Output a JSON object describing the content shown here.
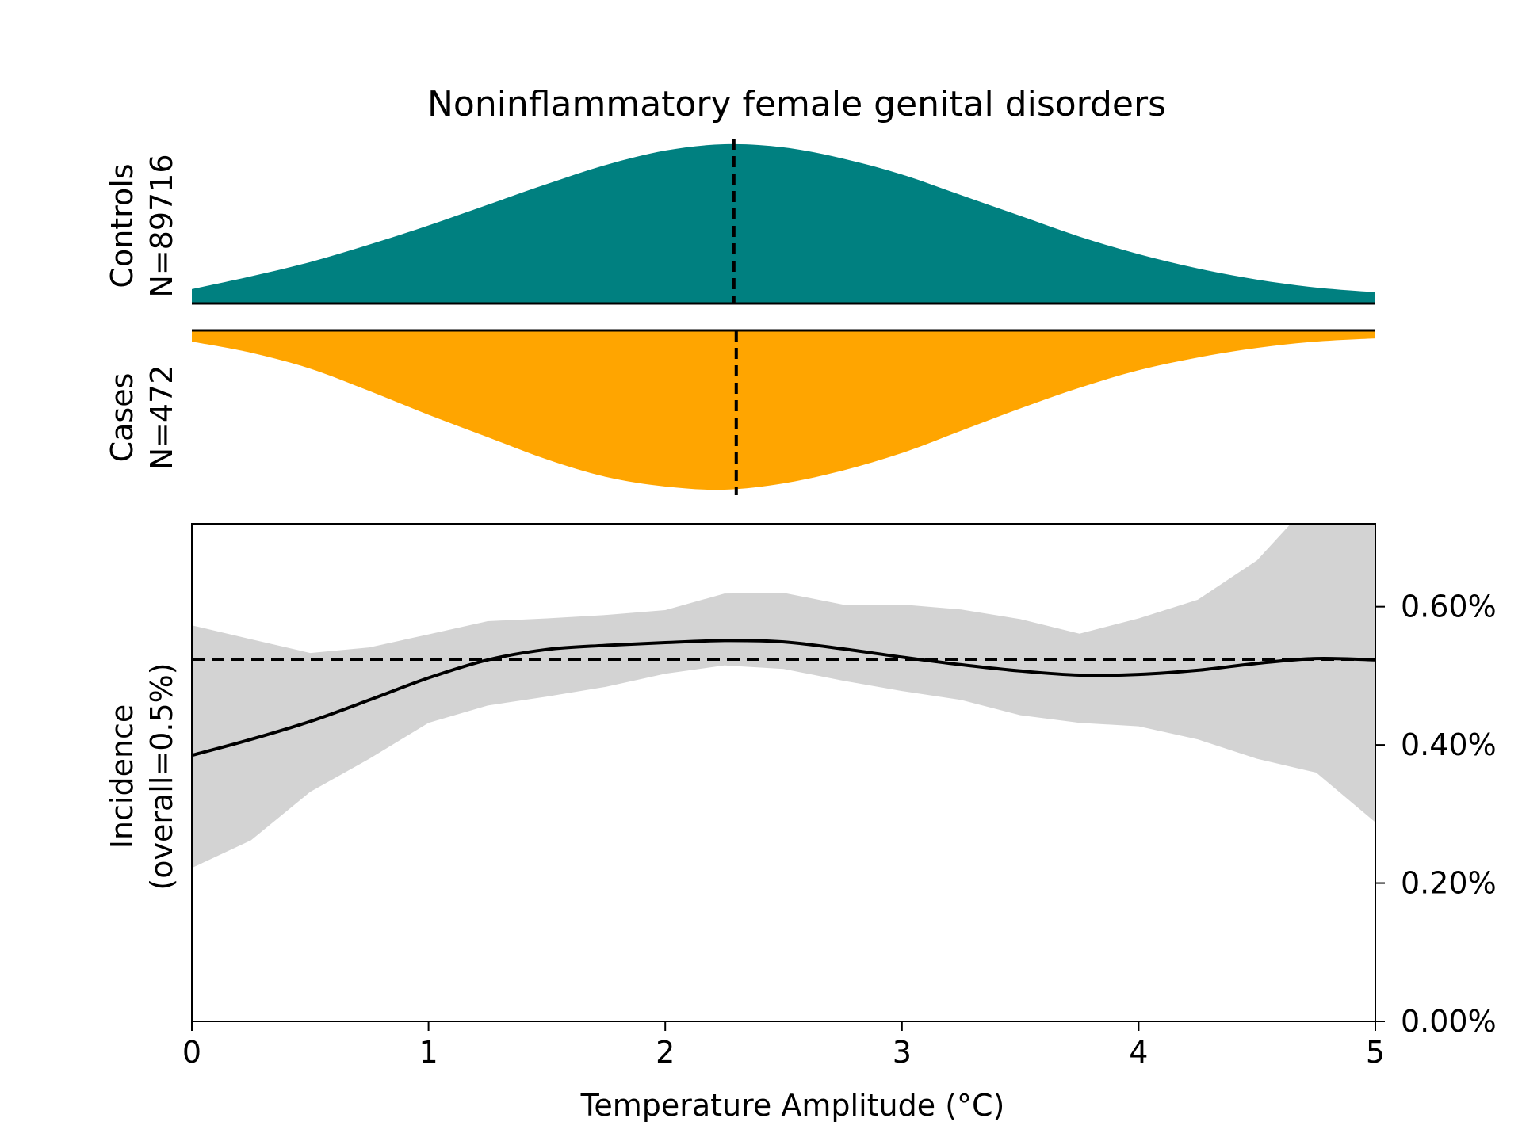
{
  "chart_data": {
    "title": "Noninflammatory female genital disorders",
    "xlabel": "Temperature Amplitude (°C)",
    "xlim": [
      0,
      5
    ],
    "x_ticks": [
      0,
      1,
      2,
      3,
      4,
      5
    ],
    "x_tick_labels": [
      "0",
      "1",
      "2",
      "3",
      "4",
      "5"
    ],
    "distributions": {
      "type": "area",
      "controls": {
        "label_line1": "Controls",
        "label_line2": "N=89716",
        "color": "#008080",
        "median": 2.29,
        "x": [
          0,
          0.25,
          0.5,
          0.75,
          1.0,
          1.25,
          1.5,
          1.75,
          2.0,
          2.25,
          2.5,
          2.75,
          3.0,
          3.25,
          3.5,
          3.75,
          4.0,
          4.25,
          4.5,
          4.75,
          5.0
        ],
        "density": [
          0.09,
          0.17,
          0.26,
          0.37,
          0.49,
          0.62,
          0.75,
          0.87,
          0.96,
          1.0,
          0.98,
          0.91,
          0.81,
          0.68,
          0.55,
          0.42,
          0.31,
          0.22,
          0.15,
          0.1,
          0.07
        ]
      },
      "cases": {
        "label_line1": "Cases",
        "label_line2": "N=472",
        "color": "#FFA500",
        "median": 2.3,
        "x": [
          0,
          0.25,
          0.5,
          0.75,
          1.0,
          1.25,
          1.5,
          1.75,
          2.0,
          2.25,
          2.5,
          2.75,
          3.0,
          3.25,
          3.5,
          3.75,
          4.0,
          4.25,
          4.5,
          4.75,
          5.0
        ],
        "density": [
          0.07,
          0.14,
          0.24,
          0.38,
          0.53,
          0.67,
          0.81,
          0.92,
          0.98,
          1.0,
          0.96,
          0.88,
          0.77,
          0.63,
          0.49,
          0.36,
          0.25,
          0.17,
          0.11,
          0.07,
          0.05
        ]
      }
    },
    "incidence": {
      "type": "line",
      "ylabel_line1": "Incidence",
      "ylabel_line2": "(overall=0.5%)",
      "ylim": [
        0,
        0.0072
      ],
      "y_ticks": [
        0,
        0.002,
        0.004,
        0.006
      ],
      "y_tick_labels": [
        "0.00%",
        "0.20%",
        "0.40%",
        "0.60%"
      ],
      "overall": 0.00524,
      "line_color": "#000000",
      "band_color": "#d3d3d3",
      "x": [
        0,
        0.25,
        0.5,
        0.75,
        1.0,
        1.25,
        1.5,
        1.75,
        2.0,
        2.25,
        2.5,
        2.75,
        3.0,
        3.25,
        3.5,
        3.75,
        4.0,
        4.25,
        4.5,
        4.75,
        5.0
      ],
      "y": [
        0.00385,
        0.00408,
        0.00434,
        0.00465,
        0.00497,
        0.00523,
        0.00538,
        0.00544,
        0.00548,
        0.00551,
        0.00549,
        0.00539,
        0.00527,
        0.00516,
        0.00507,
        0.00501,
        0.00502,
        0.00508,
        0.00518,
        0.00525,
        0.00523
      ],
      "lower": [
        0.00222,
        0.00262,
        0.00332,
        0.0038,
        0.00432,
        0.00457,
        0.0047,
        0.00484,
        0.00503,
        0.00515,
        0.0051,
        0.00493,
        0.00478,
        0.00465,
        0.00443,
        0.00432,
        0.00427,
        0.00408,
        0.0038,
        0.0036,
        0.00288
      ],
      "upper": [
        0.00573,
        0.00553,
        0.00533,
        0.00541,
        0.0056,
        0.00579,
        0.00583,
        0.00588,
        0.00595,
        0.00619,
        0.0062,
        0.00603,
        0.00603,
        0.00596,
        0.00582,
        0.00561,
        0.00583,
        0.0061,
        0.00667,
        0.0076,
        0.0088
      ]
    }
  }
}
